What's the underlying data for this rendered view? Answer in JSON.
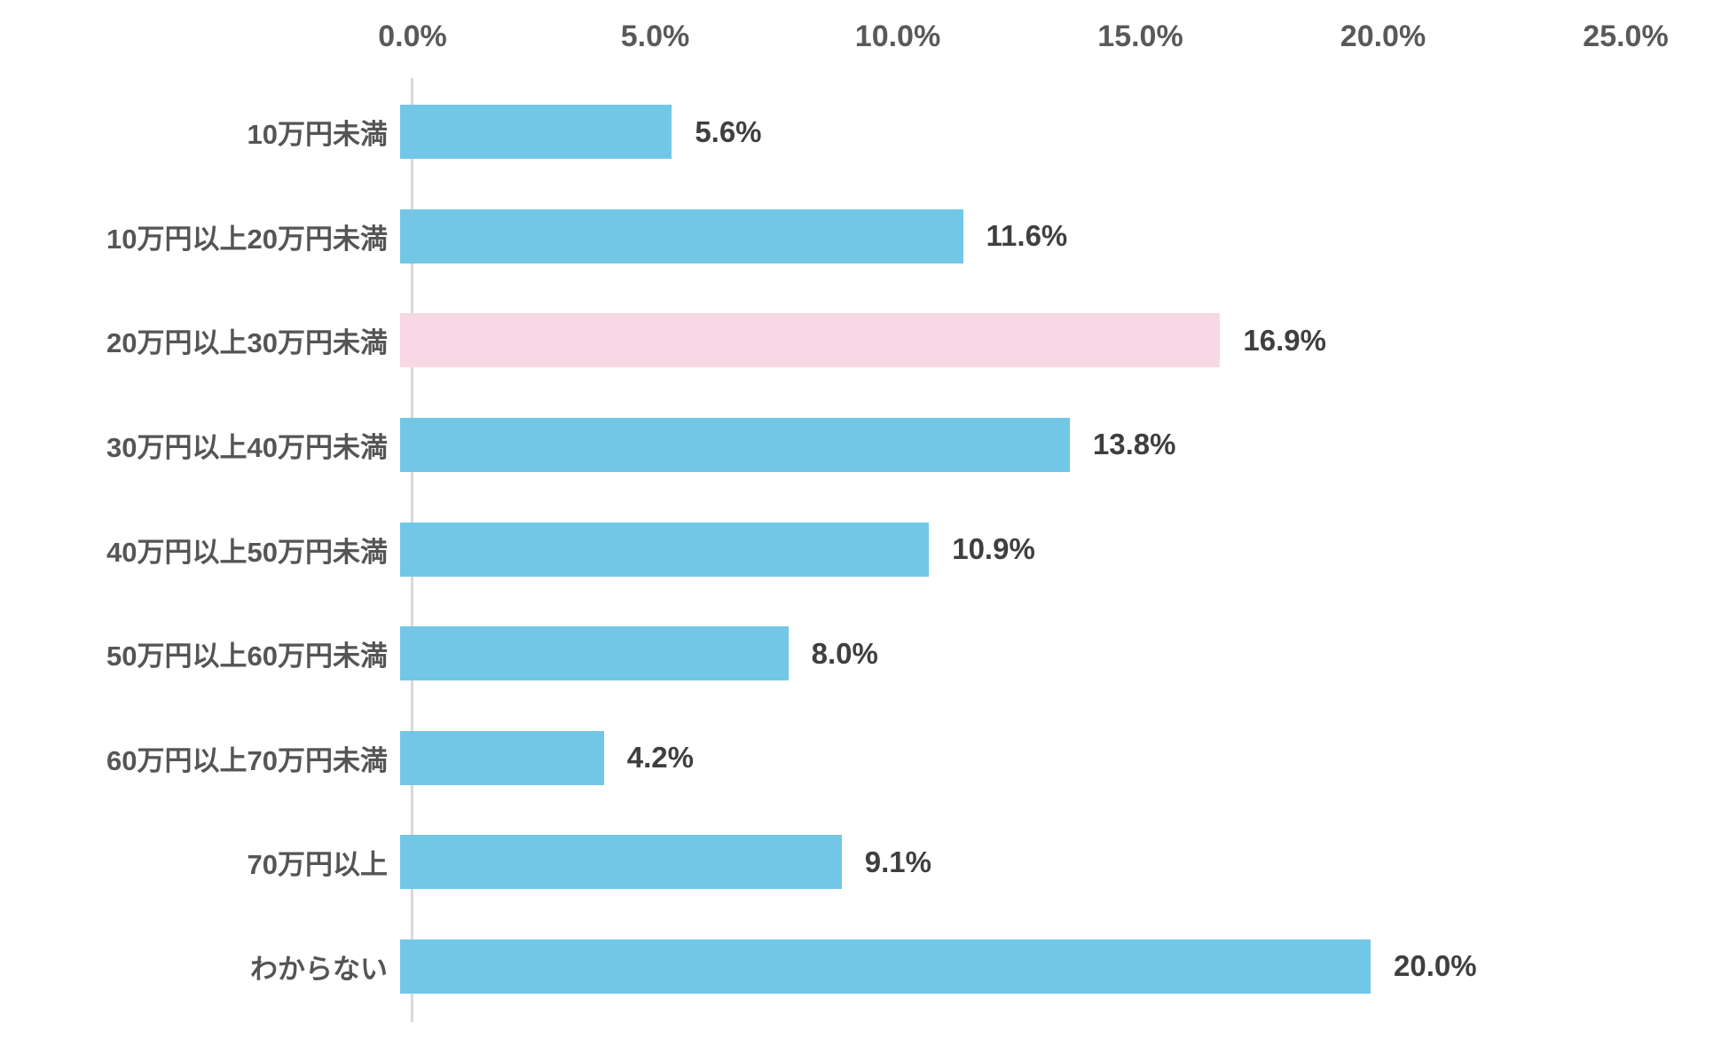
{
  "chart_data": {
    "type": "bar",
    "orientation": "horizontal",
    "title": "",
    "xlabel": "",
    "ylabel": "",
    "xlim": [
      0,
      25
    ],
    "grid": false,
    "legend": false,
    "x_tick_labels": [
      "0.0%",
      "5.0%",
      "10.0%",
      "15.0%",
      "20.0%",
      "25.0%"
    ],
    "x_tick_values": [
      0,
      5,
      10,
      15,
      20,
      25
    ],
    "categories": [
      "10万円未満",
      "10万円以上20万円未満",
      "20万円以上30万円未満",
      "30万円以上40万円未満",
      "40万円以上50万円未満",
      "50万円以上60万円未満",
      "60万円以上70万円未満",
      "70万円以上",
      "わからない"
    ],
    "values": [
      5.6,
      11.6,
      16.9,
      13.8,
      10.9,
      8.0,
      4.2,
      9.1,
      20.0
    ],
    "value_labels": [
      "5.6%",
      "11.6%",
      "16.9%",
      "13.8%",
      "10.9%",
      "8.0%",
      "4.2%",
      "9.1%",
      "20.0%"
    ],
    "highlight_index": 2,
    "bar_color": "#72c7e6",
    "highlight_color": "#f8d8e4",
    "axis_line_color": "#d9d9d9",
    "tick_text_color": "#595959",
    "label_text_color": "#555555",
    "value_text_color": "#3f3f3f"
  }
}
